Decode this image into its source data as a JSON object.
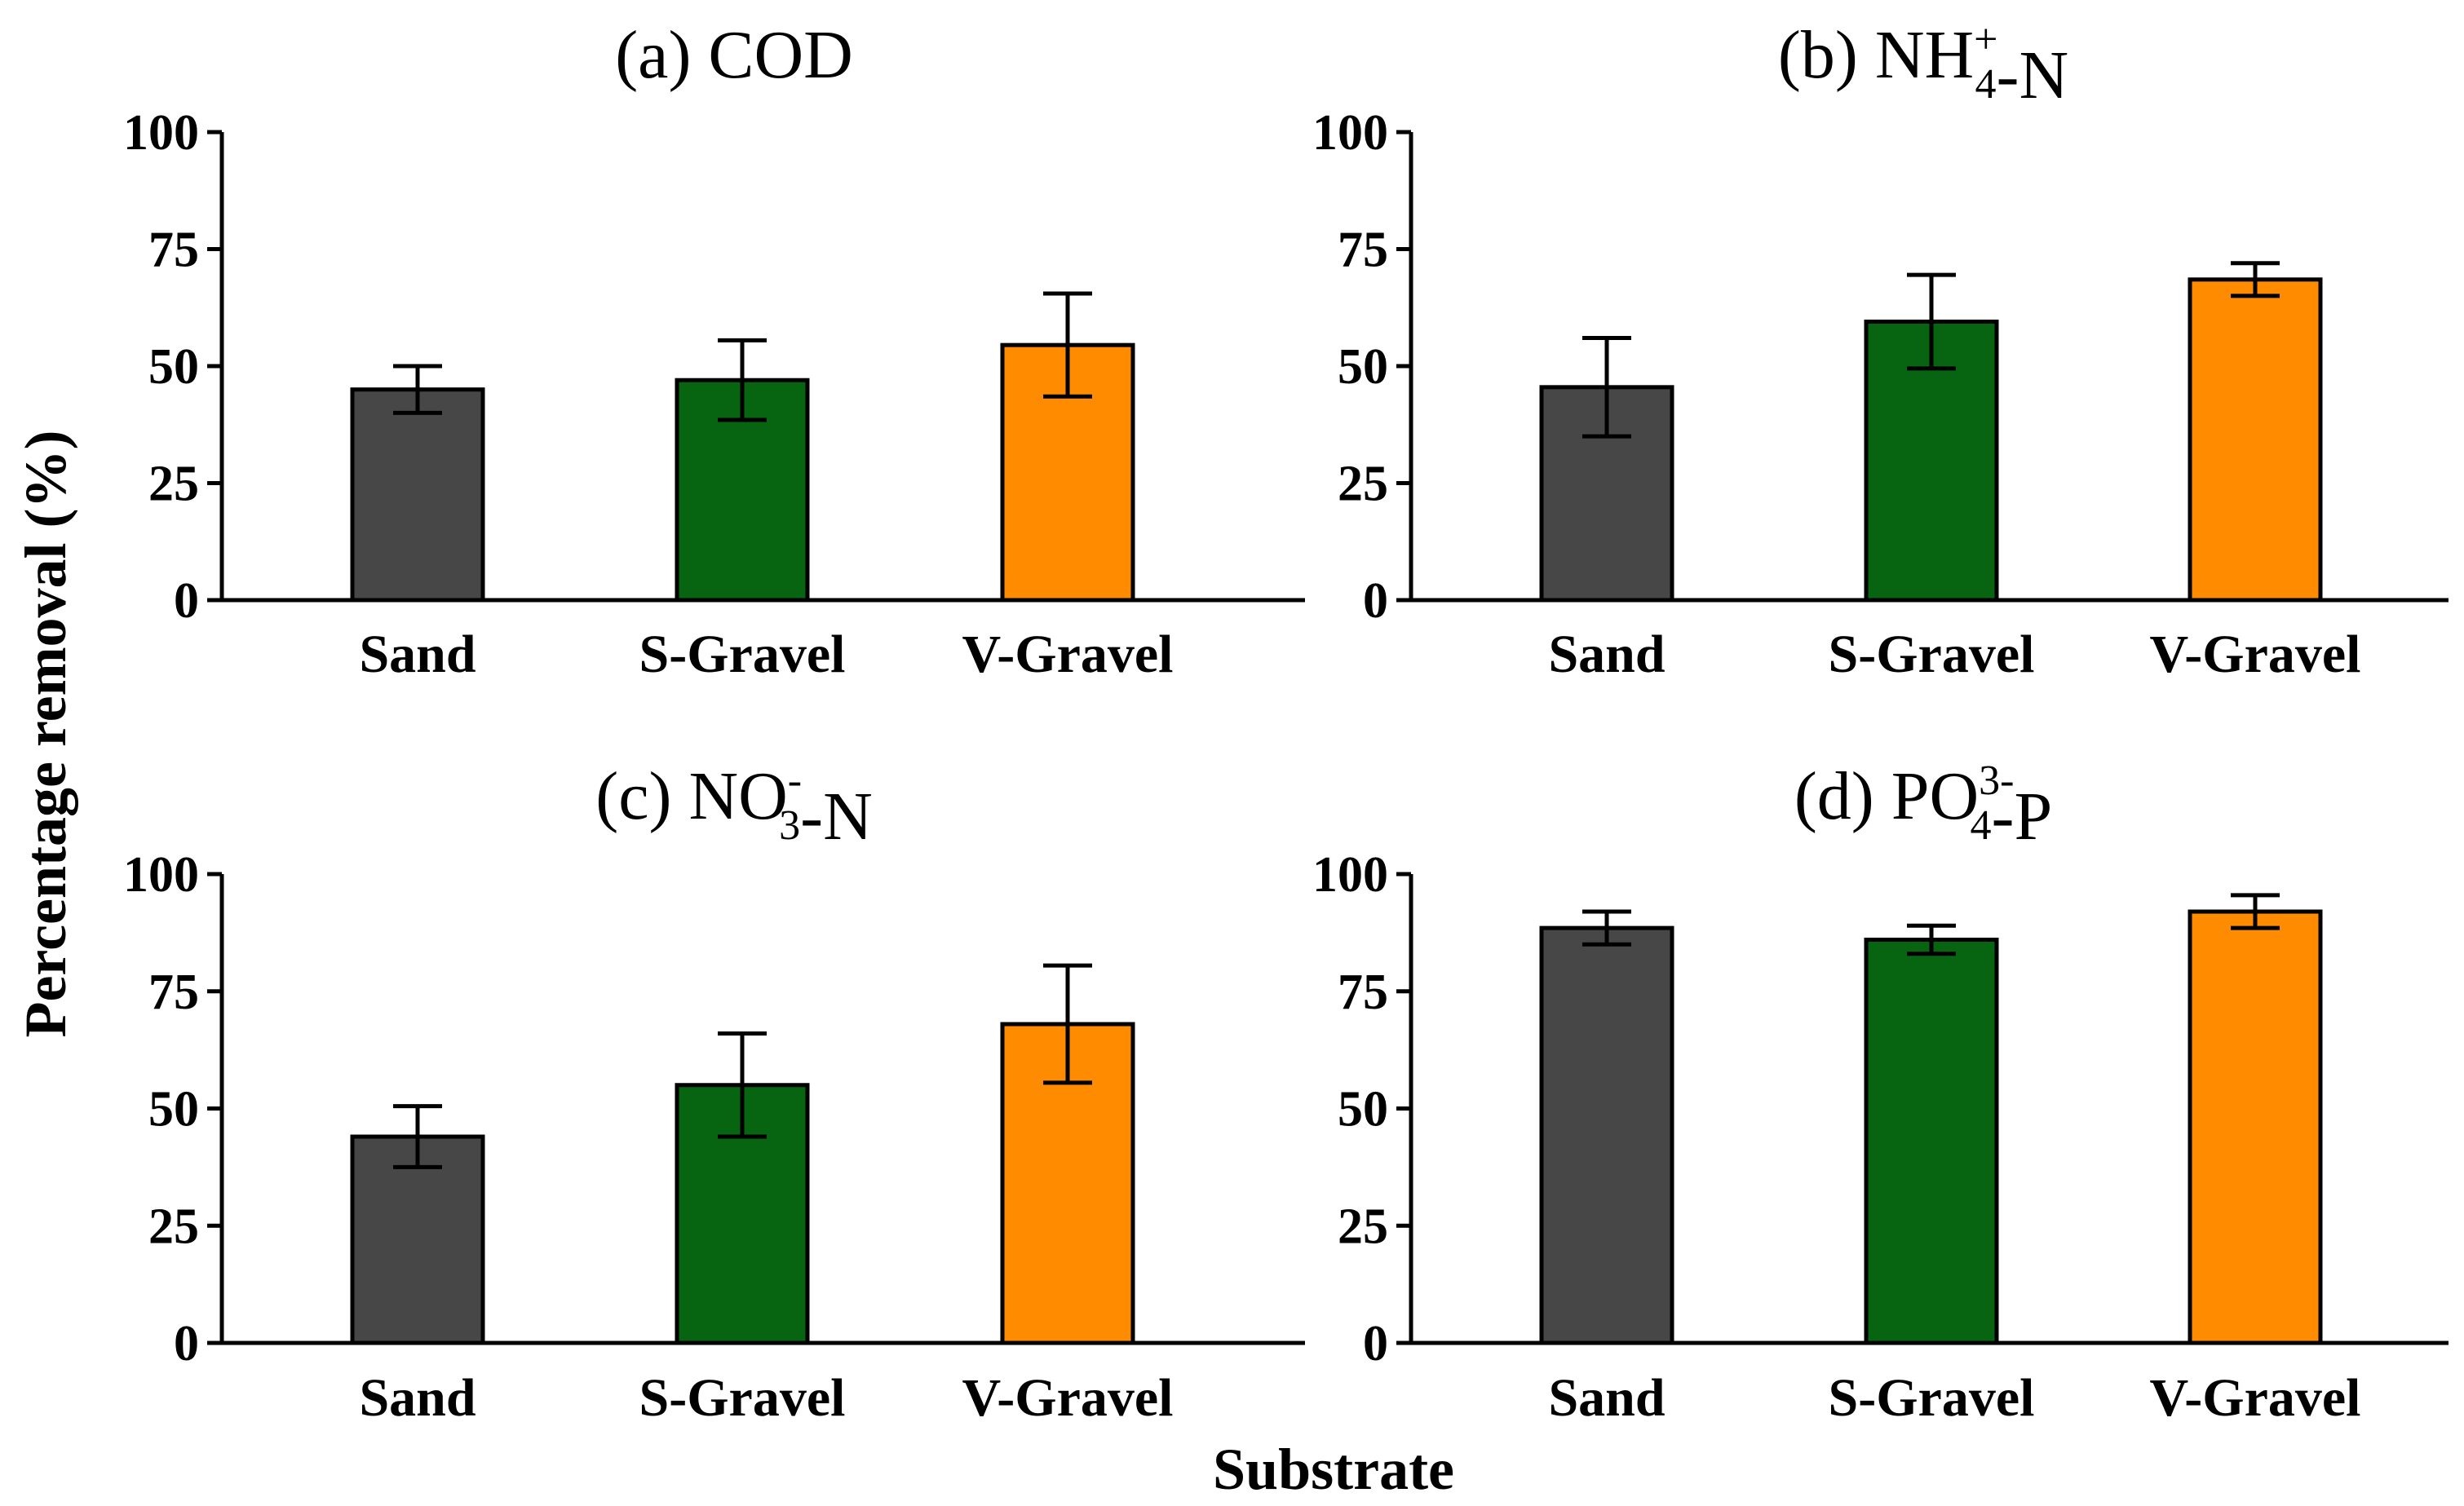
{
  "figure": {
    "ylabel": "Percentage removal (%)",
    "xlabel": "Substrate"
  },
  "chart_data": [
    {
      "type": "bar",
      "panel": "a",
      "title": "(a) COD",
      "title_parts": [
        {
          "t": "(a) COD"
        }
      ],
      "categories": [
        "Sand",
        "S-Gravel",
        "V-Gravel"
      ],
      "colors": [
        "#474747",
        "#076410",
        "#ff8c00"
      ],
      "values": [
        45,
        47,
        54.5
      ],
      "errors": [
        5,
        8.5,
        11
      ],
      "ylim": [
        0,
        100
      ],
      "yticks": [
        0,
        25,
        50,
        75,
        100
      ]
    },
    {
      "type": "bar",
      "panel": "b",
      "title": "(b) NH4+-N",
      "title_parts": [
        {
          "t": "(b) NH"
        },
        {
          "t": "4",
          "sub": "+"
        },
        {
          "t": "-N"
        }
      ],
      "categories": [
        "Sand",
        "S-Gravel",
        "V-Gravel"
      ],
      "colors": [
        "#474747",
        "#076410",
        "#ff8c00"
      ],
      "values": [
        45.5,
        59.5,
        68.5
      ],
      "errors": [
        10.5,
        10,
        3.5
      ],
      "ylim": [
        0,
        100
      ],
      "yticks": [
        0,
        25,
        50,
        75,
        100
      ]
    },
    {
      "type": "bar",
      "panel": "c",
      "title": "(c) NO3--N",
      "title_parts": [
        {
          "t": "(c) NO"
        },
        {
          "t": "3",
          "sub": "-"
        },
        {
          "t": "-N"
        }
      ],
      "categories": [
        "Sand",
        "S-Gravel",
        "V-Gravel"
      ],
      "colors": [
        "#474747",
        "#076410",
        "#ff8c00"
      ],
      "values": [
        44,
        55,
        68
      ],
      "errors": [
        6.5,
        11,
        12.5
      ],
      "ylim": [
        0,
        100
      ],
      "yticks": [
        0,
        25,
        50,
        75,
        100
      ]
    },
    {
      "type": "bar",
      "panel": "d",
      "title": "(d) PO43--P",
      "title_parts": [
        {
          "t": "(d) PO"
        },
        {
          "t": "4",
          "sub": "3-"
        },
        {
          "t": "-P"
        }
      ],
      "categories": [
        "Sand",
        "S-Gravel",
        "V-Gravel"
      ],
      "colors": [
        "#474747",
        "#076410",
        "#ff8c00"
      ],
      "values": [
        88.5,
        86,
        92
      ],
      "errors": [
        3.5,
        3,
        3.5
      ],
      "ylim": [
        0,
        100
      ],
      "yticks": [
        0,
        25,
        50,
        75,
        100
      ]
    }
  ]
}
